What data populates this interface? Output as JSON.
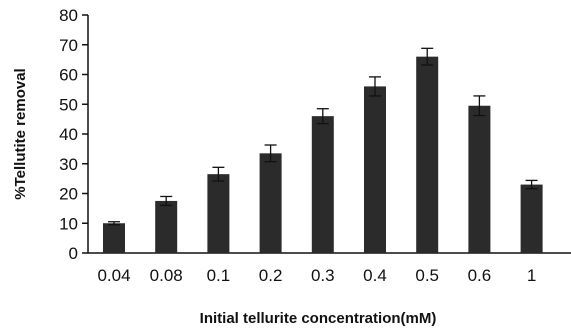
{
  "chart_data": {
    "type": "bar",
    "title": "",
    "xlabel": "Initial tellurite concentration(mM)",
    "ylabel": "%Tellutite removal",
    "categories": [
      "0.04",
      "0.08",
      "0.1",
      "0.2",
      "0.3",
      "0.4",
      "0.5",
      "0.6",
      "1"
    ],
    "series": [
      {
        "values": [
          10,
          17.5,
          26.5,
          33.5,
          46,
          56,
          66,
          49.5,
          23
        ],
        "errors": [
          0.5,
          1.5,
          2.3,
          2.8,
          2.5,
          3.2,
          2.8,
          3.3,
          1.4
        ]
      }
    ],
    "ylim": [
      0,
      80
    ],
    "yticks": [
      "0",
      "10",
      "20",
      "30",
      "40",
      "50",
      "60",
      "70",
      "80"
    ],
    "grid": false,
    "legend": "none",
    "colors": {
      "bar": "#2b2b2b",
      "axis": "#111111",
      "error_bar": "#111111"
    }
  }
}
